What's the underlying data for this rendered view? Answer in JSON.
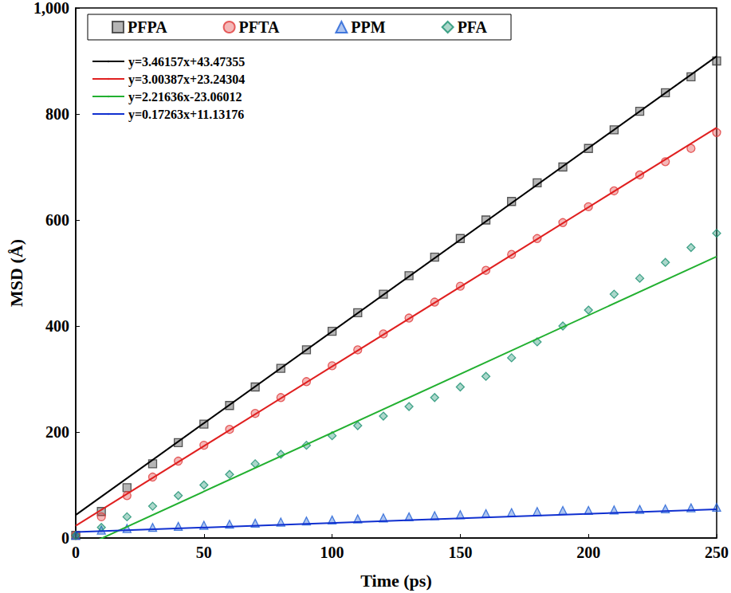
{
  "chart_data": {
    "type": "scatter",
    "x_label": "Time (ps)",
    "y_label": "MSD (Å)",
    "xlim": [
      0,
      250
    ],
    "xticks": [
      0,
      50,
      100,
      150,
      200,
      250
    ],
    "ylim": [
      0,
      1000
    ],
    "yticks": [
      0,
      200,
      400,
      600,
      800,
      1000
    ],
    "grid": false,
    "legend": "upper left",
    "x": [
      0,
      10,
      20,
      30,
      40,
      50,
      60,
      70,
      80,
      90,
      100,
      110,
      120,
      130,
      140,
      150,
      160,
      170,
      180,
      190,
      200,
      210,
      220,
      230,
      240,
      250
    ],
    "series": [
      {
        "name": "PFPA",
        "color": "#333333",
        "marker": "square",
        "values": [
          5,
          50,
          95,
          140,
          180,
          215,
          250,
          285,
          320,
          355,
          390,
          425,
          460,
          495,
          530,
          565,
          600,
          635,
          670,
          700,
          735,
          770,
          805,
          840,
          870,
          900
        ]
      },
      {
        "name": "PFTA",
        "color": "#e03a3a",
        "marker": "circle",
        "values": [
          5,
          40,
          80,
          115,
          145,
          175,
          205,
          235,
          265,
          295,
          325,
          355,
          385,
          415,
          445,
          475,
          505,
          535,
          565,
          595,
          625,
          655,
          685,
          710,
          735,
          765
        ]
      },
      {
        "name": "PPM",
        "color": "#1f5fd6",
        "marker": "triangle",
        "values": [
          5,
          15,
          18,
          20,
          22,
          24,
          26,
          28,
          30,
          32,
          34,
          36,
          38,
          40,
          42,
          44,
          46,
          48,
          50,
          52,
          52,
          53,
          54,
          55,
          57,
          58
        ]
      },
      {
        "name": "PFA",
        "color": "#1a9070",
        "marker": "diamond",
        "values": [
          5,
          20,
          40,
          60,
          80,
          100,
          120,
          140,
          158,
          175,
          193,
          212,
          230,
          248,
          265,
          285,
          305,
          340,
          370,
          400,
          430,
          460,
          490,
          520,
          548,
          575
        ]
      }
    ],
    "fits": [
      {
        "name": "y=3.46157x+43.47355",
        "color": "#000000",
        "slope": 3.46157,
        "intercept": 43.47355
      },
      {
        "name": "y=3.00387x+23.24304",
        "color": "#e02020",
        "slope": 3.00387,
        "intercept": 23.24304
      },
      {
        "name": "y=2.21636x-23.06012",
        "color": "#22b030",
        "slope": 2.21636,
        "intercept": -23.06012
      },
      {
        "name": "y=0.17263x+11.13176",
        "color": "#1030d0",
        "slope": 0.17263,
        "intercept": 11.13176
      }
    ]
  }
}
